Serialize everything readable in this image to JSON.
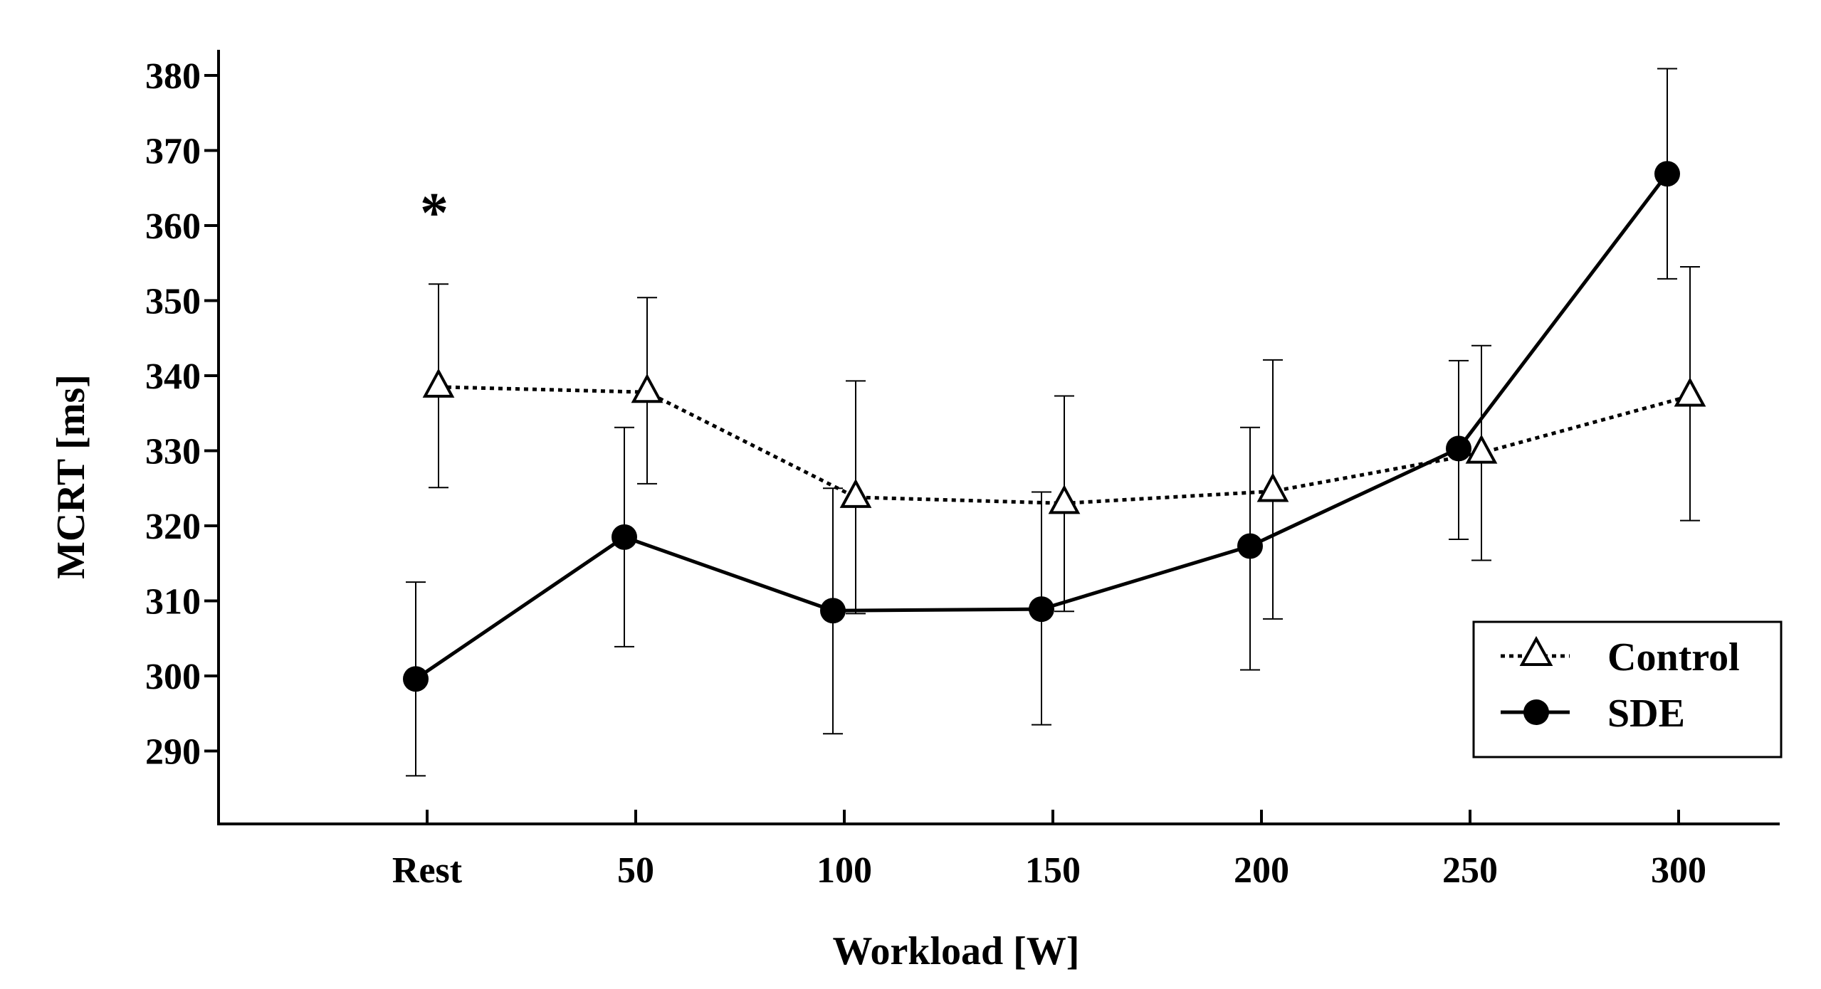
{
  "chart_data": {
    "type": "line",
    "title": "",
    "xlabel": "Workload [W]",
    "ylabel": "MCRT [ms]",
    "categories": [
      "Rest",
      "50",
      "100",
      "150",
      "200",
      "250",
      "300"
    ],
    "yticks": [
      290,
      300,
      310,
      320,
      330,
      340,
      350,
      360,
      370,
      380
    ],
    "ylim": [
      280,
      382
    ],
    "grid": false,
    "legend_position": "bottom-right",
    "series": [
      {
        "name": "Control",
        "style": "dotted",
        "marker": "open-triangle",
        "values": [
          338.5,
          337.8,
          323.8,
          323.0,
          324.6,
          329.7,
          337.3
        ],
        "error_low": [
          325.1,
          325.6,
          308.3,
          308.6,
          307.6,
          315.4,
          320.7
        ],
        "error_high": [
          352.2,
          350.4,
          339.3,
          337.3,
          342.1,
          344.0,
          354.5
        ]
      },
      {
        "name": "SDE",
        "style": "solid",
        "marker": "filled-circle",
        "values": [
          299.6,
          318.5,
          308.7,
          308.9,
          317.3,
          330.3,
          366.9
        ],
        "error_low": [
          286.7,
          303.9,
          292.3,
          293.5,
          300.8,
          318.2,
          352.9
        ],
        "error_high": [
          312.5,
          333.1,
          325.0,
          324.5,
          333.1,
          342.0,
          380.9
        ]
      }
    ],
    "annotations": [
      {
        "text": "*",
        "category": "Rest",
        "y": 362
      }
    ]
  }
}
